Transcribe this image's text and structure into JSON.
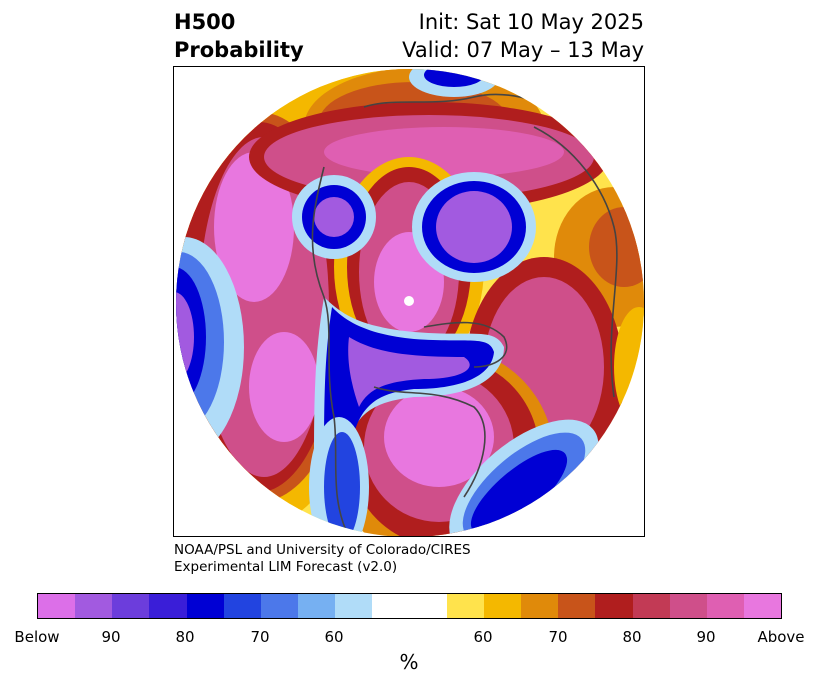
{
  "title": {
    "left_line1": "H500",
    "left_line2": "Probability",
    "right_line1": "Init: Sat 10 May 2025",
    "right_line2": "Valid: 07 May – 13 May"
  },
  "credit": {
    "line1": "NOAA/PSL and University of Colorado/CIRES",
    "line2": "Experimental LIM Forecast (v2.0)"
  },
  "colorbar": {
    "colors": [
      "#dc6fe8",
      "#a25ae0",
      "#6c3ddc",
      "#3a1ed8",
      "#0000d4",
      "#2244e0",
      "#4c78ea",
      "#76b0f2",
      "#b0dcf8",
      "#ffffff",
      "#ffffff",
      "#ffe34c",
      "#f4b800",
      "#e08a0a",
      "#c8541a",
      "#b01e1e",
      "#c23a55",
      "#cf4f8a",
      "#df5fb2",
      "#e877df"
    ],
    "tick_labels": [
      "Below",
      "90",
      "80",
      "70",
      "60",
      "60",
      "70",
      "80",
      "90",
      "Above"
    ],
    "unit": "%"
  }
}
